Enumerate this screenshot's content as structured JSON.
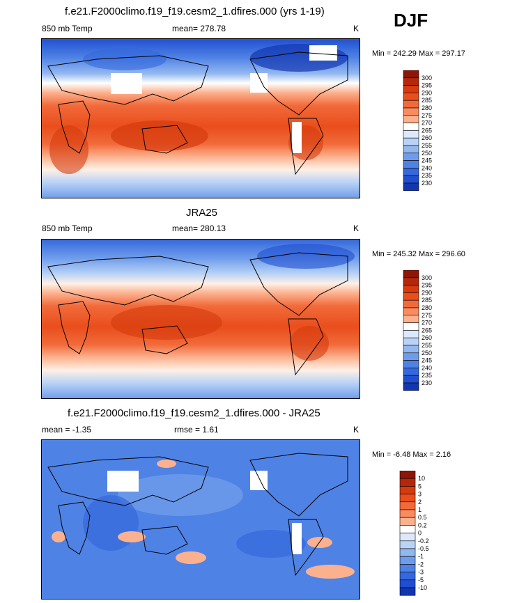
{
  "season": "DJF",
  "colors": {
    "warm_ramp": [
      "#FFF0E6",
      "#FFD7BE",
      "#FCB18E",
      "#F98B5F",
      "#F26A3A",
      "#E94E1C",
      "#D63A0E",
      "#B3280A",
      "#8E1606"
    ],
    "cool_ramp": [
      "#DCE9FB",
      "#B9D3F6",
      "#93B8F0",
      "#6E9CEB",
      "#4F82E5",
      "#3468DC",
      "#1F4FD0",
      "#1236B0",
      "#06208F",
      "#00137A"
    ],
    "white": "#FFFFFF"
  },
  "panels": [
    {
      "title": "f.e21.F2000climo.f19_f19.cesm2_1.dfires.000 (yrs 1-19)",
      "variable": "850 mb Temp",
      "stat": "mean= 278.78",
      "units": "K",
      "minmax": "Min = 242.29 Max = 297.17",
      "colorbar_labels": [
        "300",
        "295",
        "290",
        "285",
        "280",
        "275",
        "270",
        "265",
        "260",
        "255",
        "250",
        "245",
        "240",
        "235",
        "230"
      ]
    },
    {
      "title": "JRA25",
      "variable": "850 mb Temp",
      "stat": "mean= 280.13",
      "units": "K",
      "minmax": "Min = 245.32 Max = 296.60",
      "colorbar_labels": [
        "300",
        "295",
        "290",
        "285",
        "280",
        "275",
        "270",
        "265",
        "260",
        "255",
        "250",
        "245",
        "240",
        "235",
        "230"
      ]
    },
    {
      "title": "f.e21.F2000climo.f19_f19.cesm2_1.dfires.000 - JRA25",
      "variable": "mean =  -1.35",
      "stat": "rmse =   1.61",
      "units": "K",
      "minmax": "Min =  -6.48 Max =   2.16",
      "colorbar_labels": [
        "10",
        "5",
        "3",
        "2",
        "1",
        "0.5",
        "0.2",
        "0",
        "-0.2",
        "-0.5",
        "-1",
        "-2",
        "-3",
        "-5",
        "-10"
      ]
    }
  ]
}
